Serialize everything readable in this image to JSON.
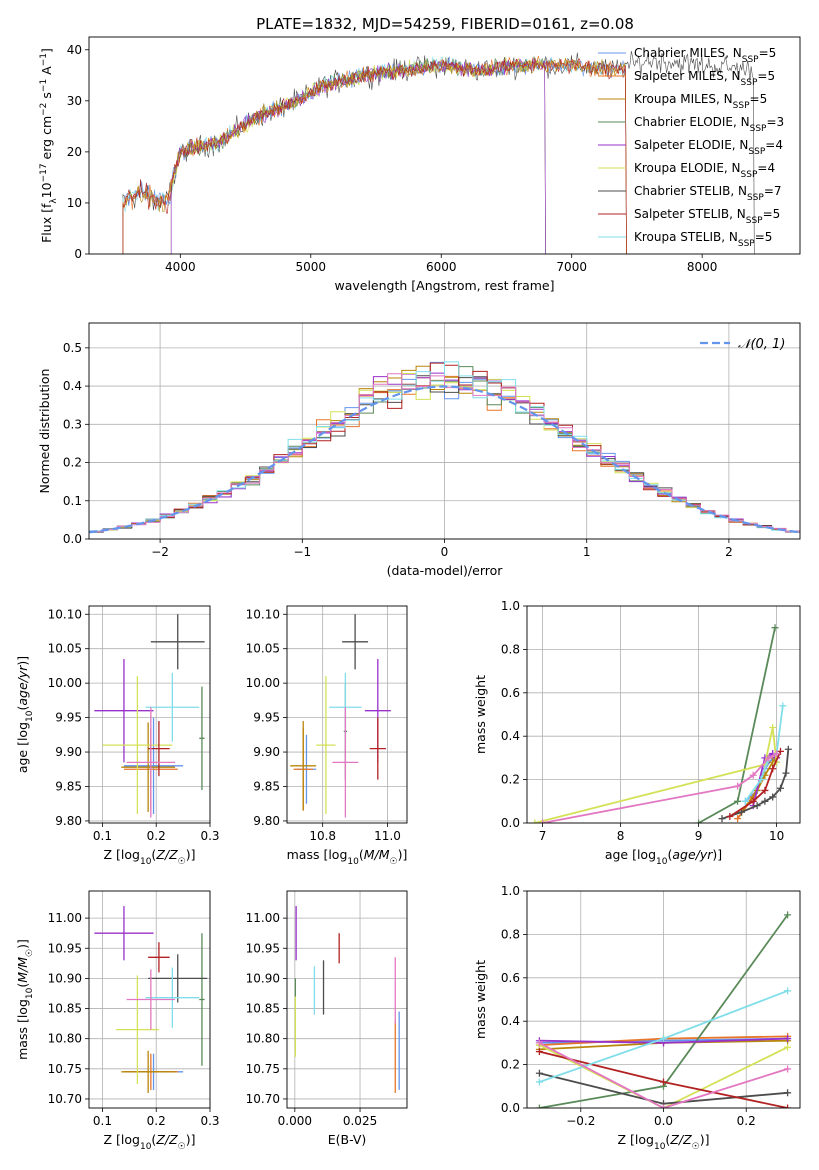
{
  "figure": {
    "title": "PLATE=1832, MJD=54259, FIBERID=0161, z=0.08"
  },
  "models": [
    {
      "name": "Chabrier MILES",
      "nssp": 5,
      "color": "#6495ed"
    },
    {
      "name": "Salpeter MILES",
      "nssp": 5,
      "color": "#e8762a"
    },
    {
      "name": "Kroupa MILES",
      "nssp": 5,
      "color": "#b8860b"
    },
    {
      "name": "Chabrier ELODIE",
      "nssp": 3,
      "color": "#5a8a5a"
    },
    {
      "name": "Salpeter ELODIE",
      "nssp": 4,
      "color": "#9932cc"
    },
    {
      "name": "Kroupa ELODIE",
      "nssp": 4,
      "color": "#d4e157"
    },
    {
      "name": "Chabrier STELIB",
      "nssp": 7,
      "color": "#4d4d4d"
    },
    {
      "name": "Salpeter STELIB",
      "nssp": 5,
      "color": "#b22222"
    },
    {
      "name": "Kroupa STELIB",
      "nssp": 5,
      "color": "#80deea"
    }
  ],
  "extra_colors": {
    "pink": "#e377c2",
    "normal_curve": "#6495ed"
  },
  "chart_data": [
    {
      "id": "spectrum",
      "type": "line",
      "xlabel": "wavelength [Angstrom, rest frame]",
      "ylabel": "Flux [f_λ 10^-17 erg cm^-2 s^-1 A^-1]",
      "xlim": [
        3300,
        8750
      ],
      "ylim": [
        0,
        42.5
      ],
      "xticks": [
        4000,
        5000,
        6000,
        7000,
        8000
      ],
      "yticks": [
        0,
        10,
        20,
        30,
        40
      ],
      "grid": false,
      "legend": "upper right",
      "series_note_points": [
        [
          3550,
          10
        ],
        [
          3700,
          12
        ],
        [
          3900,
          10
        ],
        [
          4000,
          20
        ],
        [
          4300,
          22
        ],
        [
          4600,
          27
        ],
        [
          4900,
          30
        ],
        [
          5100,
          33
        ],
        [
          5400,
          35
        ],
        [
          5700,
          36
        ],
        [
          6000,
          37
        ],
        [
          6300,
          36
        ],
        [
          6600,
          37
        ],
        [
          7000,
          37
        ],
        [
          7300,
          36
        ],
        [
          7600,
          38
        ],
        [
          8000,
          37
        ],
        [
          8400,
          36
        ]
      ]
    },
    {
      "id": "residuals",
      "type": "histogram",
      "xlabel": "(data-model)/error",
      "ylabel": "Normed distribution",
      "xlim": [
        -2.5,
        2.5
      ],
      "ylim": [
        0,
        0.565
      ],
      "xticks": [
        -2,
        -1,
        0,
        1,
        2
      ],
      "yticks": [
        0.0,
        0.1,
        0.2,
        0.3,
        0.4,
        0.5
      ],
      "grid": true,
      "legend": "upper right",
      "legend_label": "𝒩(0, 1)"
    },
    {
      "id": "age_vs_Z",
      "type": "errorbar",
      "xlabel": "Z [log10(Z/Z☉)]",
      "ylabel": "age [log10(age/yr)]",
      "xlim": [
        0.075,
        0.3
      ],
      "ylim": [
        9.797,
        10.112
      ],
      "xticks": [
        0.1,
        0.2,
        0.3
      ],
      "yticks": [
        9.8,
        9.85,
        9.9,
        9.95,
        10.0,
        10.05,
        10.1
      ],
      "grid": true,
      "points": [
        {
          "m": 0,
          "x": 0.195,
          "y": 9.88,
          "xe": 0.055,
          "ye": 0.07
        },
        {
          "m": 1,
          "x": 0.19,
          "y": 9.875,
          "xe": 0.05,
          "ye": 0.06
        },
        {
          "m": 2,
          "x": 0.185,
          "y": 9.878,
          "xe": 0.05,
          "ye": 0.065
        },
        {
          "m": 3,
          "x": 0.285,
          "y": 9.92,
          "xe": 0.005,
          "ye": 0.075
        },
        {
          "m": 4,
          "x": 0.14,
          "y": 9.96,
          "xe": 0.055,
          "ye": 0.075
        },
        {
          "m": 5,
          "x": 0.165,
          "y": 9.91,
          "xe": 0.065,
          "ye": 0.1
        },
        {
          "m": 6,
          "x": 0.24,
          "y": 10.06,
          "xe": 0.05,
          "ye": 0.04
        },
        {
          "m": 7,
          "x": 0.205,
          "y": 9.905,
          "xe": 0.02,
          "ye": 0.04
        },
        {
          "m": 8,
          "x": 0.23,
          "y": 9.965,
          "xe": 0.05,
          "ye": 0.05
        },
        {
          "m": "pink",
          "x": 0.19,
          "y": 9.885,
          "xe": 0.045,
          "ye": 0.08
        }
      ]
    },
    {
      "id": "age_vs_mass",
      "type": "errorbar",
      "xlabel": "mass [log10(M/M☉)]",
      "ylabel": "",
      "xlim": [
        10.69,
        11.06
      ],
      "ylim": [
        9.797,
        10.112
      ],
      "xticks": [
        10.8,
        11.0
      ],
      "yticks": [
        9.8,
        9.85,
        9.9,
        9.95,
        10.0,
        10.05,
        10.1
      ],
      "grid": true,
      "points": [
        {
          "m": 0,
          "x": 10.75,
          "y": 9.875,
          "xe": 0.03,
          "ye": 0.05
        },
        {
          "m": 1,
          "x": 10.74,
          "y": 9.875,
          "xe": 0.03,
          "ye": 0.06
        },
        {
          "m": 2,
          "x": 10.74,
          "y": 9.88,
          "xe": 0.04,
          "ye": 0.065
        },
        {
          "m": 3,
          "x": 10.87,
          "y": 9.93,
          "xe": 0.005,
          "ye": 0.07
        },
        {
          "m": 4,
          "x": 10.97,
          "y": 9.96,
          "xe": 0.04,
          "ye": 0.075
        },
        {
          "m": 5,
          "x": 10.81,
          "y": 9.91,
          "xe": 0.03,
          "ye": 0.1
        },
        {
          "m": 6,
          "x": 10.9,
          "y": 10.06,
          "xe": 0.04,
          "ye": 0.04
        },
        {
          "m": 7,
          "x": 10.97,
          "y": 9.905,
          "xe": 0.025,
          "ye": 0.045
        },
        {
          "m": 8,
          "x": 10.87,
          "y": 9.965,
          "xe": 0.05,
          "ye": 0.05
        },
        {
          "m": "pink",
          "x": 10.87,
          "y": 9.885,
          "xe": 0.04,
          "ye": 0.08
        }
      ]
    },
    {
      "id": "mass_weight_vs_age",
      "type": "line",
      "xlabel": "age [log10(age/yr)]",
      "ylabel": "mass weight",
      "xlim": [
        6.8,
        10.3
      ],
      "ylim": [
        0,
        1.0
      ],
      "xticks": [
        7,
        8,
        9,
        10
      ],
      "yticks": [
        0.0,
        0.2,
        0.4,
        0.6,
        0.8,
        1.0
      ],
      "grid": true,
      "series": [
        {
          "m": 0,
          "x": [
            9.6,
            9.75,
            9.85,
            9.95,
            10.0
          ],
          "y": [
            0.1,
            0.15,
            0.25,
            0.3,
            0.28
          ]
        },
        {
          "m": 1,
          "x": [
            9.5,
            9.7,
            9.8,
            9.9,
            10.0
          ],
          "y": [
            0.02,
            0.12,
            0.2,
            0.3,
            0.3
          ]
        },
        {
          "m": 2,
          "x": [
            9.55,
            9.75,
            9.85,
            9.95,
            10.0
          ],
          "y": [
            0.05,
            0.15,
            0.22,
            0.28,
            0.3
          ]
        },
        {
          "m": 3,
          "x": [
            9.0,
            9.5,
            9.98
          ],
          "y": [
            0.0,
            0.1,
            0.9
          ]
        },
        {
          "m": 4,
          "x": [
            9.7,
            9.85,
            9.95,
            10.0
          ],
          "y": [
            0.08,
            0.3,
            0.32,
            0.3
          ]
        },
        {
          "m": 5,
          "x": [
            6.9,
            9.85,
            9.95,
            10.0
          ],
          "y": [
            0.0,
            0.27,
            0.44,
            0.28
          ]
        },
        {
          "m": 6,
          "x": [
            9.3,
            9.55,
            9.75,
            9.85,
            9.95,
            10.05,
            10.12,
            10.15
          ],
          "y": [
            0.02,
            0.05,
            0.08,
            0.1,
            0.12,
            0.16,
            0.23,
            0.34
          ]
        },
        {
          "m": 7,
          "x": [
            9.4,
            9.7,
            9.85,
            9.95,
            10.05
          ],
          "y": [
            0.03,
            0.1,
            0.15,
            0.25,
            0.33
          ]
        },
        {
          "m": 8,
          "x": [
            9.6,
            9.8,
            9.9,
            10.0,
            10.08
          ],
          "y": [
            0.1,
            0.2,
            0.3,
            0.32,
            0.54
          ]
        },
        {
          "m": "pink",
          "x": [
            7.0,
            9.5,
            9.7,
            9.9,
            10.0
          ],
          "y": [
            0.0,
            0.17,
            0.22,
            0.3,
            0.32
          ]
        }
      ]
    },
    {
      "id": "mass_vs_Z",
      "type": "errorbar",
      "xlabel": "Z [log10(Z/Z☉)]",
      "ylabel": "mass [log10(M/M☉)]",
      "xlim": [
        0.075,
        0.3
      ],
      "ylim": [
        10.685,
        11.045
      ],
      "xticks": [
        0.1,
        0.2,
        0.3
      ],
      "yticks": [
        10.7,
        10.75,
        10.8,
        10.85,
        10.9,
        10.95,
        11.0
      ],
      "grid": true,
      "points": [
        {
          "m": 0,
          "x": 0.195,
          "y": 10.745,
          "xe": 0.055,
          "ye": 0.03
        },
        {
          "m": 1,
          "x": 0.19,
          "y": 10.745,
          "xe": 0.05,
          "ye": 0.03
        },
        {
          "m": 2,
          "x": 0.185,
          "y": 10.745,
          "xe": 0.05,
          "ye": 0.035
        },
        {
          "m": 3,
          "x": 0.285,
          "y": 10.865,
          "xe": 0.005,
          "ye": 0.11
        },
        {
          "m": 4,
          "x": 0.14,
          "y": 10.975,
          "xe": 0.055,
          "ye": 0.045
        },
        {
          "m": 5,
          "x": 0.165,
          "y": 10.815,
          "xe": 0.04,
          "ye": 0.09
        },
        {
          "m": 6,
          "x": 0.24,
          "y": 10.9,
          "xe": 0.055,
          "ye": 0.04
        },
        {
          "m": 7,
          "x": 0.205,
          "y": 10.935,
          "xe": 0.02,
          "ye": 0.025
        },
        {
          "m": 8,
          "x": 0.23,
          "y": 10.868,
          "xe": 0.05,
          "ye": 0.05
        },
        {
          "m": "pink",
          "x": 0.19,
          "y": 10.865,
          "xe": 0.045,
          "ye": 0.05
        }
      ]
    },
    {
      "id": "mass_vs_EBV",
      "type": "errorbar",
      "xlabel": "E(B-V)",
      "ylabel": "",
      "xlim": [
        -0.003,
        0.043
      ],
      "ylim": [
        10.685,
        11.045
      ],
      "xticks": [
        0.0,
        0.025
      ],
      "yticks": [
        10.7,
        10.75,
        10.8,
        10.85,
        10.9,
        10.95,
        11.0
      ],
      "grid": true,
      "points": [
        {
          "m": 0,
          "x": 0.04,
          "y": 10.78,
          "xe": 0,
          "ye": 0.065
        },
        {
          "m": 1,
          "x": 0.0385,
          "y": 10.77,
          "xe": 0,
          "ye": 0.06
        },
        {
          "m": 3,
          "x": 0.0002,
          "y": 10.84,
          "xe": 0,
          "ye": 0.06
        },
        {
          "m": 4,
          "x": 0.0005,
          "y": 10.975,
          "xe": 0,
          "ye": 0.045
        },
        {
          "m": 5,
          "x": 0.0002,
          "y": 10.82,
          "xe": 0,
          "ye": 0.05
        },
        {
          "m": 6,
          "x": 0.011,
          "y": 10.885,
          "xe": 0,
          "ye": 0.045
        },
        {
          "m": 7,
          "x": 0.017,
          "y": 10.95,
          "xe": 0,
          "ye": 0.025
        },
        {
          "m": 8,
          "x": 0.0075,
          "y": 10.88,
          "xe": 0,
          "ye": 0.04
        },
        {
          "m": "pink",
          "x": 0.0385,
          "y": 10.88,
          "xe": 0,
          "ye": 0.055
        }
      ]
    },
    {
      "id": "mass_weight_vs_Z",
      "type": "line",
      "xlabel": "Z [log10(Z/Z☉)]",
      "ylabel": "mass weight",
      "xlim": [
        -0.33,
        0.33
      ],
      "ylim": [
        0,
        1.0
      ],
      "xticks": [
        -0.2,
        0.0,
        0.2
      ],
      "yticks": [
        0.0,
        0.2,
        0.4,
        0.6,
        0.8,
        1.0
      ],
      "grid": true,
      "series": [
        {
          "m": 0,
          "x": [
            -0.3,
            0.0,
            0.3
          ],
          "y": [
            0.3,
            0.31,
            0.32
          ]
        },
        {
          "m": 1,
          "x": [
            -0.3,
            0.0,
            0.3
          ],
          "y": [
            0.29,
            0.32,
            0.33
          ]
        },
        {
          "m": 2,
          "x": [
            -0.3,
            0.0,
            0.3
          ],
          "y": [
            0.27,
            0.3,
            0.31
          ]
        },
        {
          "m": 3,
          "x": [
            -0.3,
            0.0,
            0.3
          ],
          "y": [
            0.0,
            0.1,
            0.89
          ]
        },
        {
          "m": 4,
          "x": [
            -0.3,
            0.0,
            0.3
          ],
          "y": [
            0.31,
            0.3,
            0.32
          ]
        },
        {
          "m": 5,
          "x": [
            -0.3,
            0.0,
            0.3
          ],
          "y": [
            0.29,
            0.0,
            0.28
          ]
        },
        {
          "m": 6,
          "x": [
            -0.3,
            0.0,
            0.3
          ],
          "y": [
            0.16,
            0.02,
            0.07
          ]
        },
        {
          "m": 7,
          "x": [
            -0.3,
            0.0,
            0.3
          ],
          "y": [
            0.26,
            0.12,
            0.0
          ]
        },
        {
          "m": 8,
          "x": [
            -0.3,
            0.0,
            0.3
          ],
          "y": [
            0.12,
            0.32,
            0.54
          ]
        },
        {
          "m": "pink",
          "x": [
            -0.3,
            0.0,
            0.3
          ],
          "y": [
            0.3,
            0.0,
            0.18
          ]
        }
      ]
    }
  ]
}
